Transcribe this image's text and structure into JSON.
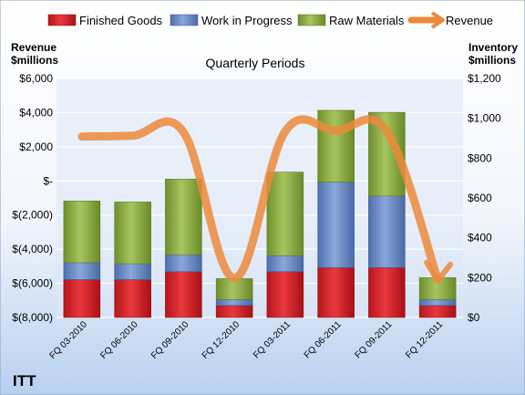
{
  "colors": {
    "finished_goods": "#d8262b",
    "work_in_progress": "#6f8fc9",
    "raw_materials": "#93b34b",
    "revenue": "#ec8a3c"
  },
  "chart_data": {
    "type": "bar",
    "stacked": true,
    "title": "Quarterly Periods",
    "company": "ITT",
    "left_axis_label_1": "Revenue",
    "left_axis_label_2": "$millions",
    "right_axis_label_1": "Inventory",
    "right_axis_label_2": "$millions",
    "categories": [
      "FQ 03-2010",
      "FQ 06-2010",
      "FQ 09-2010",
      "FQ 12-2010",
      "FQ 03-2011",
      "FQ 06-2011",
      "FQ 09-2011",
      "FQ 12-2011"
    ],
    "left_axis": {
      "min": -8000,
      "max": 6000,
      "ticks": [
        -8000,
        -6000,
        -4000,
        -2000,
        0,
        2000,
        4000,
        6000
      ],
      "tick_labels": [
        "$(8,000)",
        "$(6,000)",
        "$(4,000)",
        "$(2,000)",
        "$-",
        "$2,000",
        "$4,000",
        "$6,000"
      ]
    },
    "right_axis": {
      "min": 0,
      "max": 1200,
      "ticks": [
        0,
        200,
        400,
        600,
        800,
        1000,
        1200
      ],
      "tick_labels": [
        "$0",
        "$200",
        "$400",
        "$600",
        "$800",
        "$1,000",
        "$1,200"
      ]
    },
    "series": [
      {
        "name": "Finished Goods",
        "axis": "right",
        "values": [
          190,
          190,
          230,
          60,
          230,
          250,
          250,
          60
        ]
      },
      {
        "name": "Work in Progress",
        "axis": "right",
        "values": [
          85,
          80,
          85,
          30,
          80,
          430,
          360,
          30
        ]
      },
      {
        "name": "Raw Materials",
        "axis": "right",
        "values": [
          310,
          310,
          380,
          105,
          420,
          360,
          420,
          110
        ]
      },
      {
        "name": "Revenue",
        "axis": "left",
        "type": "line",
        "values": [
          2600,
          2650,
          2850,
          -5700,
          2900,
          2950,
          2900,
          -5750
        ]
      }
    ],
    "grid": true,
    "legend_position": "top"
  }
}
